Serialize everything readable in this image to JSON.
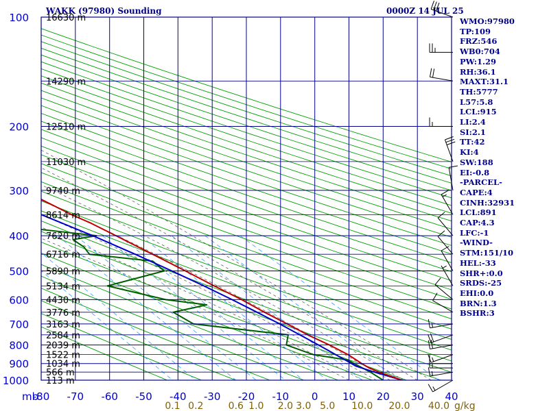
{
  "title_left": "WAKK (97980) Sounding",
  "title_right": "0000Z 14 JUL 25",
  "indices": [
    "WMO:97980",
    "TP:109",
    "FRZ:546",
    "WB0:704",
    "PW:1.29",
    "RH:36.1",
    "MAXT:31.1",
    "TH:5777",
    "L57:5.8",
    "LCL:915",
    "LI:2.4",
    "SI:2.1",
    "TT:42",
    "KI:4",
    "SW:188",
    "EI:-0.8",
    "-PARCEL-",
    "CAPE:4",
    "CINH:32931",
    "LCL:891",
    "CAP:4.3",
    "LFC:-1",
    "-WIND-",
    "STM:151/10",
    "HEL:-33",
    "SHR+:0.0",
    "SRDS:-25",
    "EHI:0.0",
    "BRN:1.3",
    "BSHR:3"
  ],
  "colors": {
    "grid": "#00008b",
    "isotherm": "#0000cd",
    "dry_adiabat": "#00a000",
    "moist_adiabat": "#606060",
    "mixing_ratio": "#3399ff",
    "temperature": "#c00000",
    "dewpoint": "#006000",
    "parcel": "#0000cc",
    "mixing_label": "#806000"
  },
  "chart_data": {
    "type": "skew-t log-p",
    "x_unit_label": "mb",
    "y_unit": "mb",
    "pressure_range": [
      1000,
      100
    ],
    "temperature_range": [
      -80,
      40
    ],
    "pressure_ticks": [
      100,
      200,
      300,
      400,
      500,
      600,
      700,
      800,
      900,
      1000
    ],
    "temperature_ticks": [
      -80,
      -70,
      -60,
      -50,
      -40,
      -30,
      -20,
      -10,
      0,
      10,
      20,
      30,
      40
    ],
    "height_labels": [
      {
        "p": 100,
        "text": "16630 m"
      },
      {
        "p": 150,
        "text": "14290 m"
      },
      {
        "p": 200,
        "text": "12510 m"
      },
      {
        "p": 250,
        "text": "11030 m"
      },
      {
        "p": 300,
        "text": "9740 m"
      },
      {
        "p": 350,
        "text": "8614 m"
      },
      {
        "p": 400,
        "text": "7620 m"
      },
      {
        "p": 450,
        "text": "6716 m"
      },
      {
        "p": 500,
        "text": "5890 m"
      },
      {
        "p": 550,
        "text": "5134 m"
      },
      {
        "p": 600,
        "text": "4430 m"
      },
      {
        "p": 650,
        "text": "3776 m"
      },
      {
        "p": 700,
        "text": "3163 m"
      },
      {
        "p": 750,
        "text": "2584 m"
      },
      {
        "p": 800,
        "text": "2039 m"
      },
      {
        "p": 850,
        "text": "1522 m"
      },
      {
        "p": 900,
        "text": "1034 m"
      },
      {
        "p": 950,
        "text": "566 m"
      },
      {
        "p": 1000,
        "text": "113 m"
      }
    ],
    "mixing_ratio_labels": [
      "0.1",
      "0.2",
      "0.6",
      "1.0",
      "2.0",
      "3.0",
      "5.0",
      "10.0",
      "20.0",
      "40.0"
    ],
    "mixing_ratio_unit": "g/kg",
    "temperature_profile": [
      {
        "p": 1000,
        "t": 25.5
      },
      {
        "p": 950,
        "t": 21.2
      },
      {
        "p": 925,
        "t": 19.5
      },
      {
        "p": 900,
        "t": 18.6
      },
      {
        "p": 850,
        "t": 17.2
      },
      {
        "p": 800,
        "t": 14.6
      },
      {
        "p": 750,
        "t": 11.2
      },
      {
        "p": 700,
        "t": 8.4
      },
      {
        "p": 650,
        "t": 5.2
      },
      {
        "p": 600,
        "t": 2.2
      },
      {
        "p": 550,
        "t": -1.8
      },
      {
        "p": 500,
        "t": -5.8
      },
      {
        "p": 450,
        "t": -10.5
      },
      {
        "p": 400,
        "t": -15.8
      },
      {
        "p": 370,
        "t": -19.4
      },
      {
        "p": 350,
        "t": -22.6
      },
      {
        "p": 300,
        "t": -29.6
      },
      {
        "p": 250,
        "t": -39.6
      },
      {
        "p": 200,
        "t": -51.0
      },
      {
        "p": 150,
        "t": -67.0
      },
      {
        "p": 120,
        "t": -75.6
      },
      {
        "p": 107,
        "t": -80.2
      },
      {
        "p": 100,
        "t": -80.6
      }
    ],
    "dewpoint_profile": [
      {
        "p": 1000,
        "t": 20.0
      },
      {
        "p": 950,
        "t": 18.6
      },
      {
        "p": 900,
        "t": 16.4
      },
      {
        "p": 880,
        "t": 15.6
      },
      {
        "p": 850,
        "t": 7.0
      },
      {
        "p": 800,
        "t": 2.0
      },
      {
        "p": 750,
        "t": 5.5
      },
      {
        "p": 700,
        "t": -19.0
      },
      {
        "p": 650,
        "t": -21.5
      },
      {
        "p": 620,
        "t": -9.5
      },
      {
        "p": 600,
        "t": -20.0
      },
      {
        "p": 550,
        "t": -33.0
      },
      {
        "p": 500,
        "t": -12.0
      },
      {
        "p": 470,
        "t": -12.5
      },
      {
        "p": 450,
        "t": -29.0
      },
      {
        "p": 430,
        "t": -28.5
      },
      {
        "p": 410,
        "t": -29.5
      },
      {
        "p": 400,
        "t": -21.5
      },
      {
        "p": 380,
        "t": -40.0
      },
      {
        "p": 350,
        "t": -57.0
      },
      {
        "p": 300,
        "t": -63.0
      },
      {
        "p": 275,
        "t": -61.0
      },
      {
        "p": 250,
        "t": -66.0
      },
      {
        "p": 230,
        "t": -59.0
      },
      {
        "p": 200,
        "t": -75.0
      },
      {
        "p": 170,
        "t": -79.0
      },
      {
        "p": 130,
        "t": -80.4
      }
    ],
    "parcel_profile": [
      {
        "p": 1000,
        "t": 25.5
      },
      {
        "p": 950,
        "t": 19.8
      },
      {
        "p": 915,
        "t": 16.2
      },
      {
        "p": 900,
        "t": 15.6
      },
      {
        "p": 850,
        "t": 13.6
      },
      {
        "p": 800,
        "t": 11.4
      },
      {
        "p": 750,
        "t": 8.9
      },
      {
        "p": 700,
        "t": 6.2
      },
      {
        "p": 650,
        "t": 3.0
      },
      {
        "p": 600,
        "t": -0.6
      },
      {
        "p": 550,
        "t": -4.8
      },
      {
        "p": 500,
        "t": -9.8
      },
      {
        "p": 450,
        "t": -15.6
      },
      {
        "p": 400,
        "t": -22.6
      },
      {
        "p": 350,
        "t": -31.4
      },
      {
        "p": 300,
        "t": -42.0
      },
      {
        "p": 250,
        "t": -55.0
      },
      {
        "p": 200,
        "t": -69.5
      },
      {
        "p": 160,
        "t": -80.6
      }
    ],
    "wind_barbs": [
      {
        "p": 1000,
        "dir": 240,
        "spd": 15
      },
      {
        "p": 950,
        "dir": 260,
        "spd": 15
      },
      {
        "p": 925,
        "dir": 270,
        "spd": 15
      },
      {
        "p": 900,
        "dir": 270,
        "spd": 10
      },
      {
        "p": 850,
        "dir": 250,
        "spd": 15
      },
      {
        "p": 800,
        "dir": 260,
        "spd": 20
      },
      {
        "p": 750,
        "dir": 250,
        "spd": 20
      },
      {
        "p": 700,
        "dir": 260,
        "spd": 15
      },
      {
        "p": 650,
        "dir": 300,
        "spd": 10
      },
      {
        "p": 600,
        "dir": 310,
        "spd": 10
      },
      {
        "p": 550,
        "dir": 330,
        "spd": 5
      },
      {
        "p": 500,
        "dir": 330,
        "spd": 10
      },
      {
        "p": 450,
        "dir": 320,
        "spd": 10
      },
      {
        "p": 400,
        "dir": 320,
        "spd": 10
      },
      {
        "p": 350,
        "dir": 330,
        "spd": 15
      },
      {
        "p": 300,
        "dir": 350,
        "spd": 10
      },
      {
        "p": 250,
        "dir": 340,
        "spd": 30
      },
      {
        "p": 200,
        "dir": 270,
        "spd": 15
      },
      {
        "p": 150,
        "dir": 280,
        "spd": 20
      },
      {
        "p": 125,
        "dir": 270,
        "spd": 25
      },
      {
        "p": 100,
        "dir": 290,
        "spd": 30
      }
    ],
    "grid": true
  }
}
